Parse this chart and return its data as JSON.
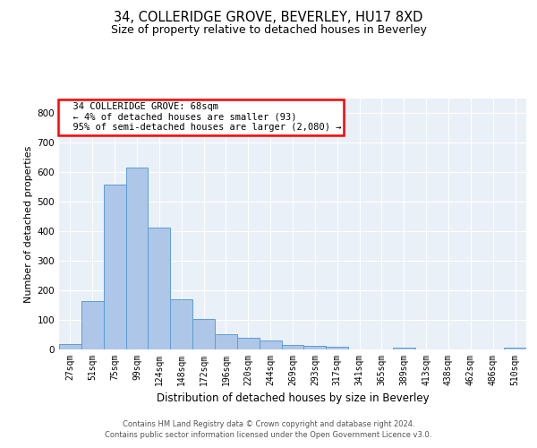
{
  "title": "34, COLLERIDGE GROVE, BEVERLEY, HU17 8XD",
  "subtitle": "Size of property relative to detached houses in Beverley",
  "xlabel": "Distribution of detached houses by size in Beverley",
  "ylabel": "Number of detached properties",
  "footer_line1": "Contains HM Land Registry data © Crown copyright and database right 2024.",
  "footer_line2": "Contains public sector information licensed under the Open Government Licence v3.0.",
  "bar_labels": [
    "27sqm",
    "51sqm",
    "75sqm",
    "99sqm",
    "124sqm",
    "148sqm",
    "172sqm",
    "196sqm",
    "220sqm",
    "244sqm",
    "269sqm",
    "293sqm",
    "317sqm",
    "341sqm",
    "365sqm",
    "389sqm",
    "413sqm",
    "438sqm",
    "462sqm",
    "486sqm",
    "510sqm"
  ],
  "bar_values": [
    18,
    163,
    558,
    615,
    413,
    170,
    103,
    51,
    39,
    31,
    14,
    12,
    9,
    0,
    0,
    7,
    0,
    0,
    0,
    0,
    7
  ],
  "bar_color": "#aec6e8",
  "bar_edge_color": "#5a9fd4",
  "annotation_text": "  34 COLLERIDGE GROVE: 68sqm\n  ← 4% of detached houses are smaller (93)\n  95% of semi-detached houses are larger (2,080) →",
  "annotation_box_color": "red",
  "ylim": [
    0,
    850
  ],
  "yticks": [
    0,
    100,
    200,
    300,
    400,
    500,
    600,
    700,
    800
  ],
  "background_color": "#eaf0f8",
  "grid_color": "white",
  "title_fontsize": 10.5,
  "subtitle_fontsize": 9,
  "xlabel_fontsize": 8.5,
  "ylabel_fontsize": 8,
  "tick_fontsize": 7,
  "annotation_fontsize": 7.5,
  "footer_fontsize": 6
}
